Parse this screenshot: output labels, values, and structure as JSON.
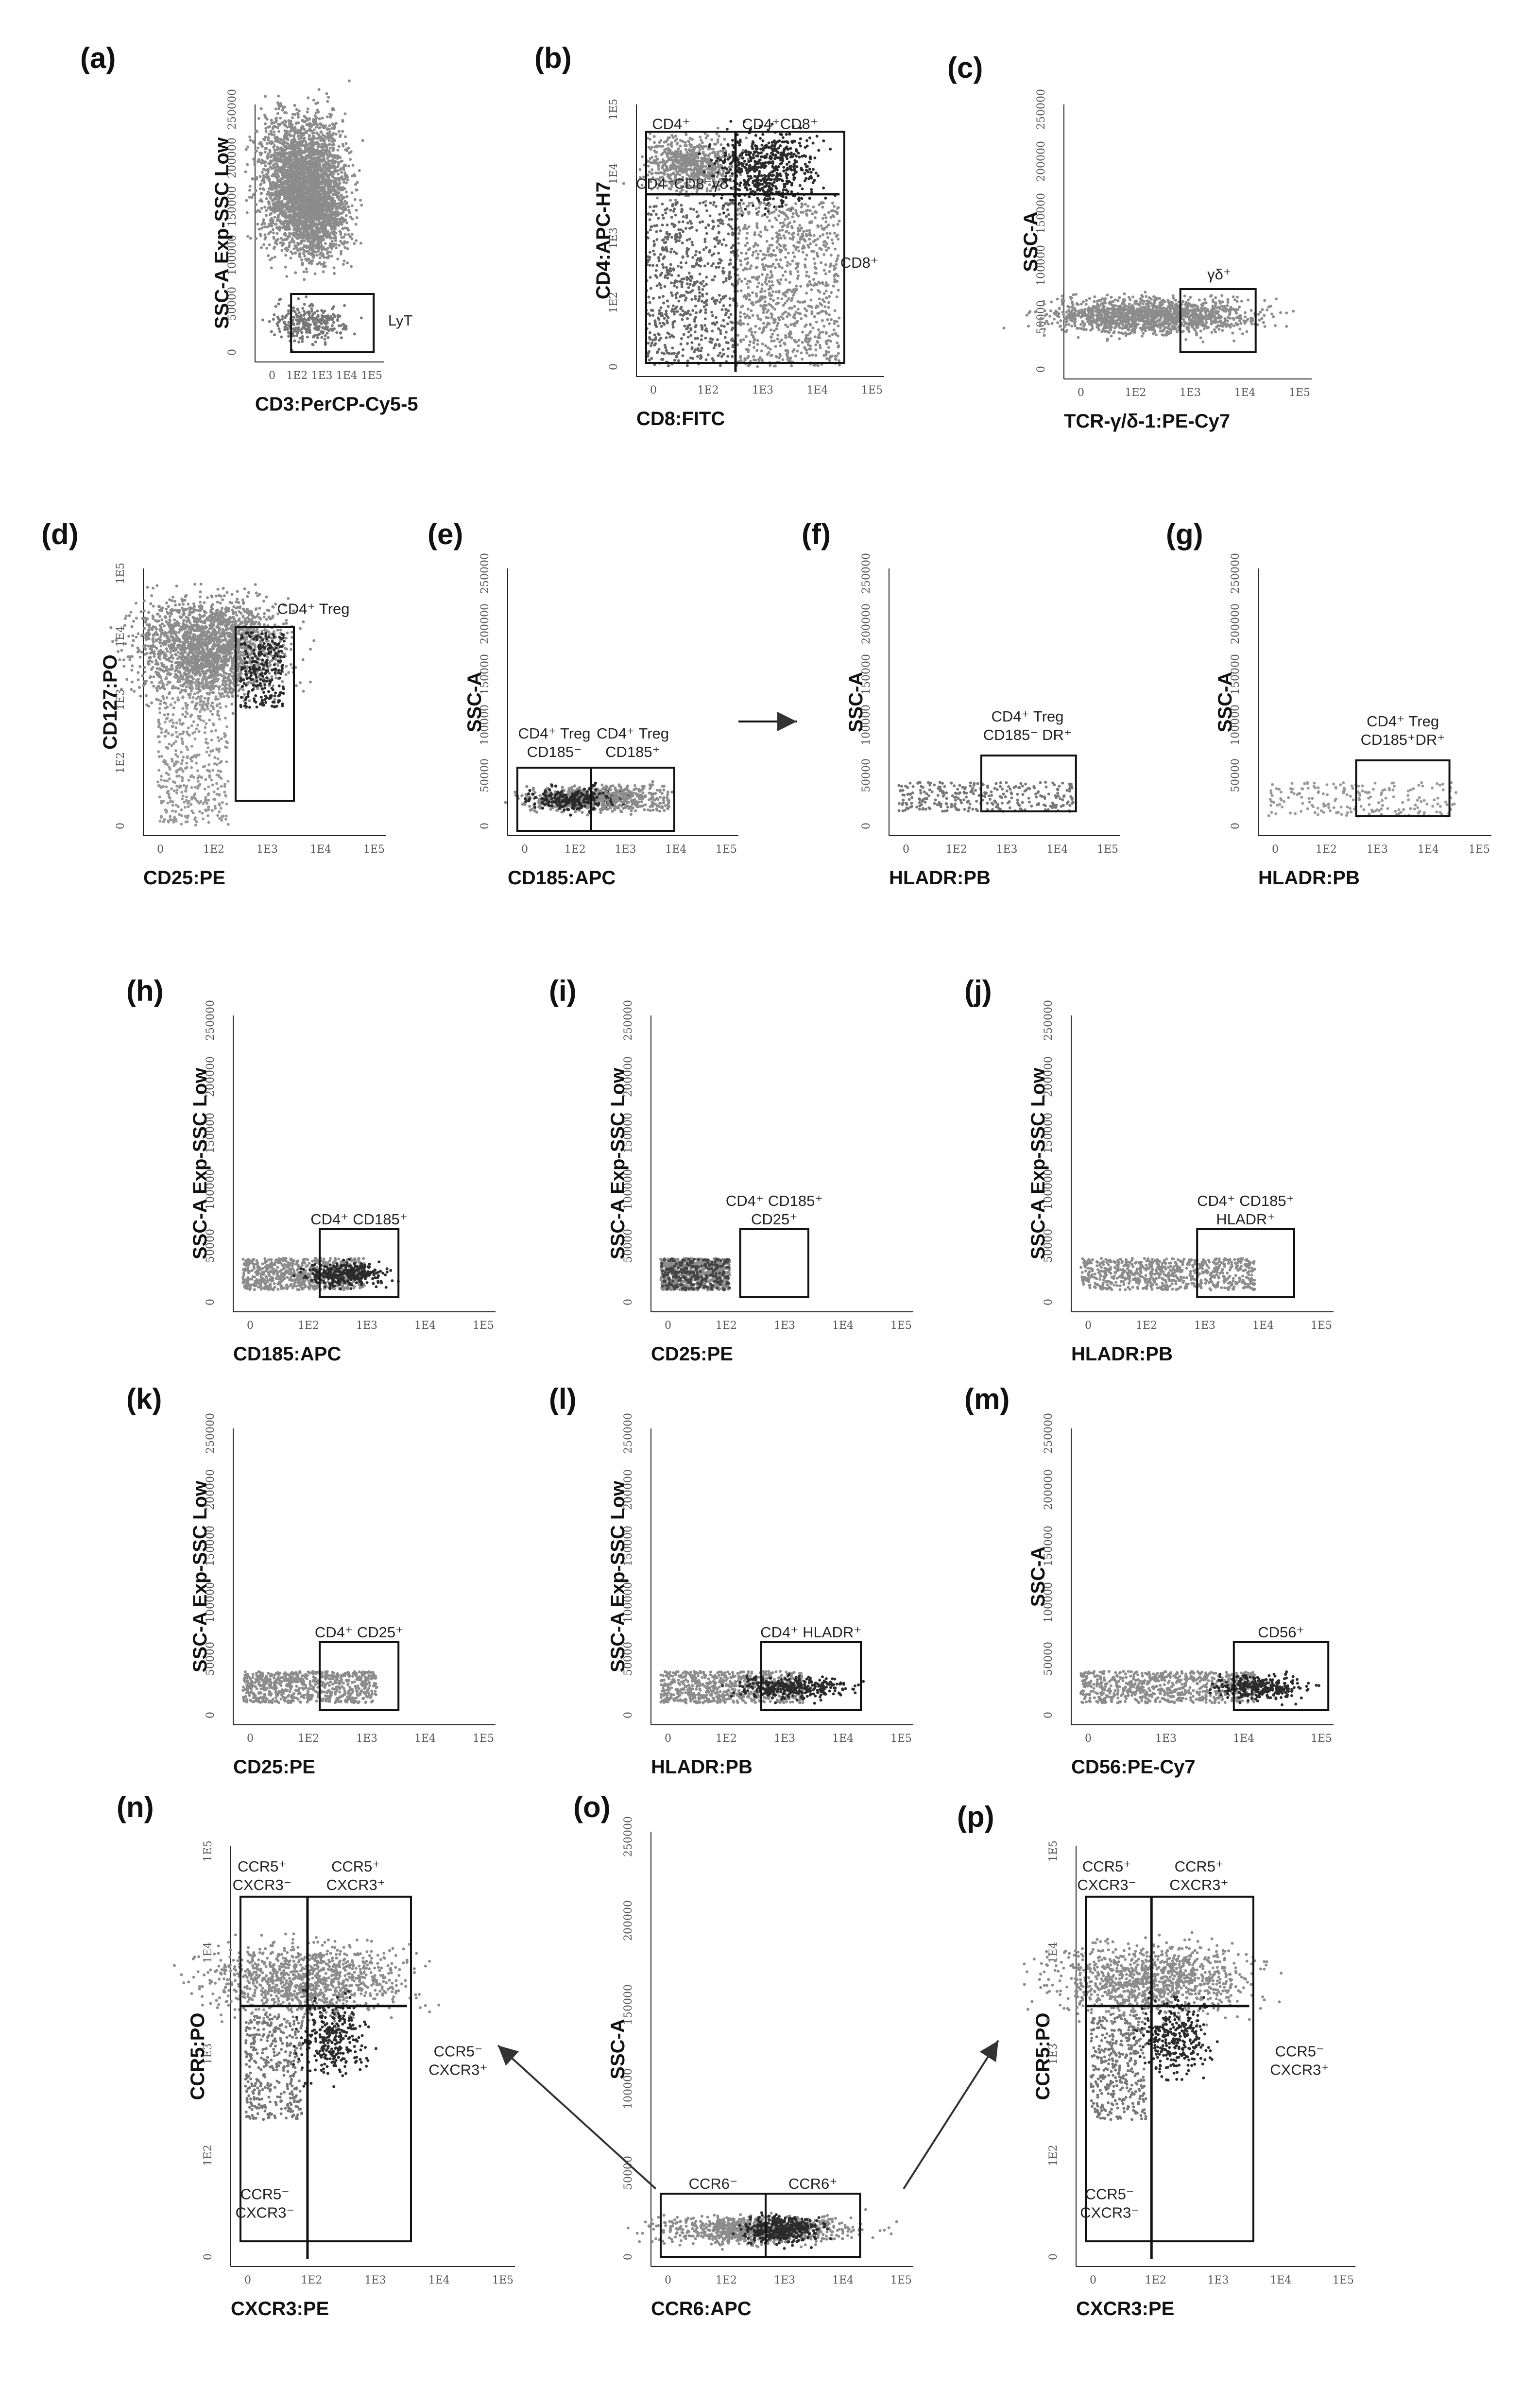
{
  "colors": {
    "population": "#8c8c8c",
    "dark": "#2b2b2b",
    "gate": "#111111",
    "arrow": "#333333"
  },
  "chart_data": [
    {
      "id": "a",
      "type": "scatter",
      "panel_label": "(a)",
      "xlabel": "CD3:PerCP-Cy5-5",
      "ylabel": "SSC-A Exp-SSC Low",
      "x_ticks": [
        "0",
        "1E2",
        "1E3",
        "1E4",
        "1E5"
      ],
      "y_ticks": [
        "0",
        "50000",
        "100000",
        "150000",
        "200000",
        "250000"
      ],
      "gates": [
        {
          "label_lines": [
            "LyT"
          ]
        }
      ]
    },
    {
      "id": "b",
      "type": "scatter",
      "panel_label": "(b)",
      "xlabel": "CD8:FITC",
      "ylabel": "CD4:APC-H7",
      "x_ticks": [
        "0",
        "1E2",
        "1E3",
        "1E4",
        "1E5"
      ],
      "y_ticks": [
        "0",
        "1E2",
        "1E3",
        "1E4",
        "1E5"
      ],
      "gates": [
        {
          "label_lines": [
            "CD4⁺"
          ]
        },
        {
          "label_lines": [
            "CD4⁺CD8⁺"
          ]
        },
        {
          "label_lines": [
            "CD4⁻CD8⁻γδ⁻"
          ]
        },
        {
          "label_lines": [
            "CD8⁺"
          ]
        }
      ]
    },
    {
      "id": "c",
      "type": "scatter",
      "panel_label": "(c)",
      "xlabel": "TCR-γ/δ-1:PE-Cy7",
      "ylabel": "SSC-A",
      "x_ticks": [
        "0",
        "1E2",
        "1E3",
        "1E4",
        "1E5"
      ],
      "y_ticks": [
        "0",
        "50000",
        "100000",
        "150000",
        "200000",
        "250000"
      ],
      "gates": [
        {
          "label_lines": [
            "γδ⁺"
          ]
        }
      ]
    },
    {
      "id": "d",
      "type": "scatter",
      "panel_label": "(d)",
      "xlabel": "CD25:PE",
      "ylabel": "CD127:PO",
      "x_ticks": [
        "0",
        "1E2",
        "1E3",
        "1E4",
        "1E5"
      ],
      "y_ticks": [
        "0",
        "1E2",
        "1E3",
        "1E4",
        "1E5"
      ],
      "gates": [
        {
          "label_lines": [
            "CD4⁺ Treg"
          ]
        }
      ]
    },
    {
      "id": "e",
      "type": "scatter",
      "panel_label": "(e)",
      "xlabel": "CD185:APC",
      "ylabel": "SSC-A",
      "x_ticks": [
        "0",
        "1E2",
        "1E3",
        "1E4",
        "1E5"
      ],
      "y_ticks": [
        "0",
        "50000",
        "100000",
        "150000",
        "200000",
        "250000"
      ],
      "gates": [
        {
          "label_lines": [
            "CD4⁺ Treg",
            "CD185⁻"
          ]
        },
        {
          "label_lines": [
            "CD4⁺ Treg",
            "CD185⁺"
          ]
        }
      ]
    },
    {
      "id": "f",
      "type": "scatter",
      "panel_label": "(f)",
      "xlabel": "HLADR:PB",
      "ylabel": "SSC-A",
      "x_ticks": [
        "0",
        "1E2",
        "1E3",
        "1E4",
        "1E5"
      ],
      "y_ticks": [
        "0",
        "50000",
        "100000",
        "150000",
        "200000",
        "250000"
      ],
      "gates": [
        {
          "label_lines": [
            "CD4⁺ Treg",
            "CD185⁻ DR⁺"
          ]
        }
      ]
    },
    {
      "id": "g",
      "type": "scatter",
      "panel_label": "(g)",
      "xlabel": "HLADR:PB",
      "ylabel": "SSC-A",
      "x_ticks": [
        "0",
        "1E2",
        "1E3",
        "1E4",
        "1E5"
      ],
      "y_ticks": [
        "0",
        "50000",
        "100000",
        "150000",
        "200000",
        "250000"
      ],
      "gates": [
        {
          "label_lines": [
            "CD4⁺ Treg",
            "CD185⁺DR⁺"
          ]
        }
      ]
    },
    {
      "id": "h",
      "type": "scatter",
      "panel_label": "(h)",
      "xlabel": "CD185:APC",
      "ylabel": "SSC-A Exp-SSC Low",
      "x_ticks": [
        "0",
        "1E2",
        "1E3",
        "1E4",
        "1E5"
      ],
      "y_ticks": [
        "0",
        "50000",
        "100000",
        "150000",
        "200000",
        "250000"
      ],
      "gates": [
        {
          "label_lines": [
            "CD4⁺ CD185⁺"
          ]
        }
      ]
    },
    {
      "id": "i",
      "type": "scatter",
      "panel_label": "(i)",
      "xlabel": "CD25:PE",
      "ylabel": "SSC-A Exp-SSC Low",
      "x_ticks": [
        "0",
        "1E2",
        "1E3",
        "1E4",
        "1E5"
      ],
      "y_ticks": [
        "0",
        "50000",
        "100000",
        "150000",
        "200000",
        "250000"
      ],
      "gates": [
        {
          "label_lines": [
            "CD4⁺ CD185⁺",
            "CD25⁺"
          ]
        }
      ]
    },
    {
      "id": "j",
      "type": "scatter",
      "panel_label": "(j)",
      "xlabel": "HLADR:PB",
      "ylabel": "SSC-A Exp-SSC Low",
      "x_ticks": [
        "0",
        "1E2",
        "1E3",
        "1E4",
        "1E5"
      ],
      "y_ticks": [
        "0",
        "50000",
        "100000",
        "150000",
        "200000",
        "250000"
      ],
      "gates": [
        {
          "label_lines": [
            "CD4⁺ CD185⁺",
            "HLADR⁺"
          ]
        }
      ]
    },
    {
      "id": "k",
      "type": "scatter",
      "panel_label": "(k)",
      "xlabel": "CD25:PE",
      "ylabel": "SSC-A Exp-SSC Low",
      "x_ticks": [
        "0",
        "1E2",
        "1E3",
        "1E4",
        "1E5"
      ],
      "y_ticks": [
        "0",
        "50000",
        "100000",
        "150000",
        "200000",
        "250000"
      ],
      "gates": [
        {
          "label_lines": [
            "CD4⁺ CD25⁺"
          ]
        }
      ]
    },
    {
      "id": "l",
      "type": "scatter",
      "panel_label": "(l)",
      "xlabel": "HLADR:PB",
      "ylabel": "SSC-A Exp-SSC Low",
      "x_ticks": [
        "0",
        "1E2",
        "1E3",
        "1E4",
        "1E5"
      ],
      "y_ticks": [
        "0",
        "50000",
        "100000",
        "150000",
        "200000",
        "250000"
      ],
      "gates": [
        {
          "label_lines": [
            "CD4⁺ HLADR⁺"
          ]
        }
      ]
    },
    {
      "id": "m",
      "type": "scatter",
      "panel_label": "(m)",
      "xlabel": "CD56:PE-Cy7",
      "ylabel": "SSC-A",
      "x_ticks": [
        "0",
        "1E3",
        "1E4",
        "1E5"
      ],
      "y_ticks": [
        "0",
        "50000",
        "100000",
        "150000",
        "200000",
        "250000"
      ],
      "gates": [
        {
          "label_lines": [
            "CD56⁺"
          ]
        }
      ]
    },
    {
      "id": "n",
      "type": "scatter",
      "panel_label": "(n)",
      "xlabel": "CXCR3:PE",
      "ylabel": "CCR5:PO",
      "x_ticks": [
        "0",
        "1E2",
        "1E3",
        "1E4",
        "1E5"
      ],
      "y_ticks": [
        "0",
        "1E2",
        "1E3",
        "1E4",
        "1E5"
      ],
      "gates": [
        {
          "label_lines": [
            "CCR5⁺",
            "CXCR3⁻"
          ]
        },
        {
          "label_lines": [
            "CCR5⁺",
            "CXCR3⁺"
          ]
        },
        {
          "label_lines": [
            "CCR5⁻",
            "CXCR3⁻"
          ]
        },
        {
          "label_lines": [
            "CCR5⁻",
            "CXCR3⁺"
          ]
        }
      ]
    },
    {
      "id": "o",
      "type": "scatter",
      "panel_label": "(o)",
      "xlabel": "CCR6:APC",
      "ylabel": "SSC-A",
      "x_ticks": [
        "0",
        "1E2",
        "1E3",
        "1E4",
        "1E5"
      ],
      "y_ticks": [
        "0",
        "50000",
        "100000",
        "150000",
        "200000",
        "250000"
      ],
      "gates": [
        {
          "label_lines": [
            "CCR6⁻"
          ]
        },
        {
          "label_lines": [
            "CCR6⁺"
          ]
        }
      ]
    },
    {
      "id": "p",
      "type": "scatter",
      "panel_label": "(p)",
      "xlabel": "CXCR3:PE",
      "ylabel": "CCR5:PO",
      "x_ticks": [
        "0",
        "1E2",
        "1E3",
        "1E4",
        "1E5"
      ],
      "y_ticks": [
        "0",
        "1E2",
        "1E3",
        "1E4",
        "1E5"
      ],
      "gates": [
        {
          "label_lines": [
            "CCR5⁺",
            "CXCR3⁻"
          ]
        },
        {
          "label_lines": [
            "CCR5⁺",
            "CXCR3⁺"
          ]
        },
        {
          "label_lines": [
            "CCR5⁻",
            "CXCR3⁻"
          ]
        },
        {
          "label_lines": [
            "CCR5⁻",
            "CXCR3⁺"
          ]
        }
      ]
    }
  ]
}
